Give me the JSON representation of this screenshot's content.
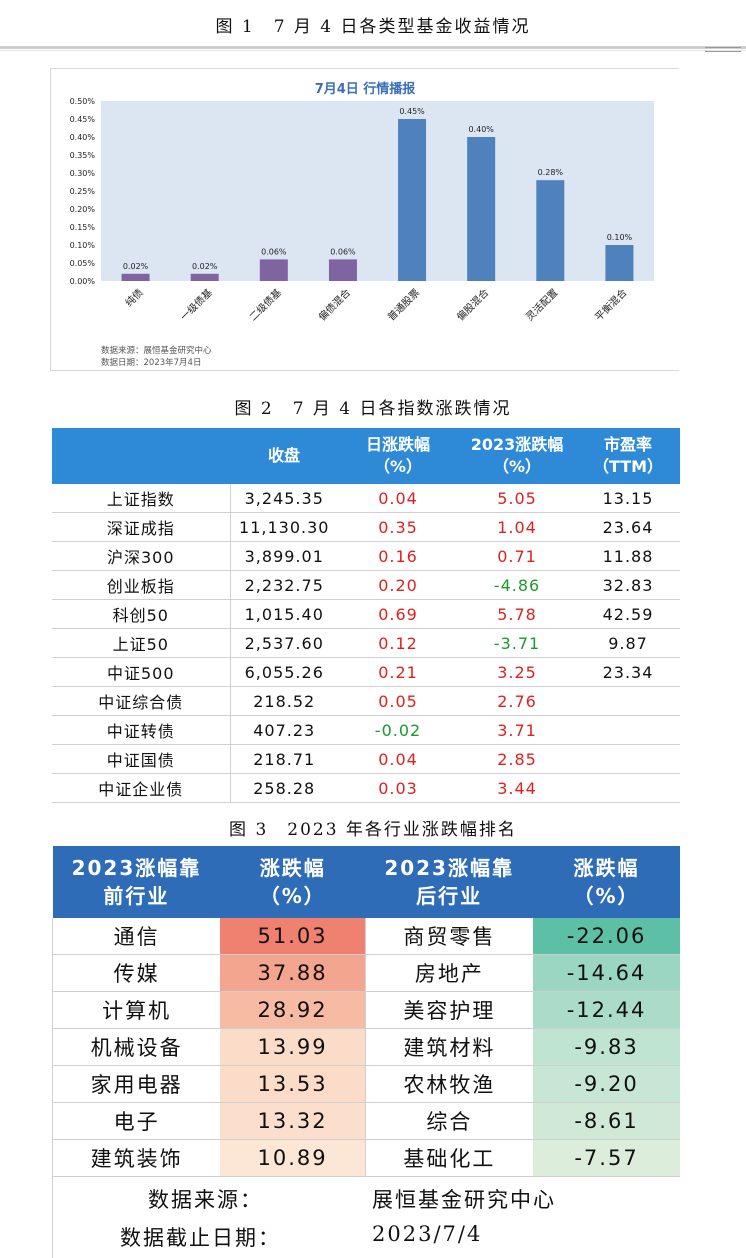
{
  "fig1": {
    "caption": "图 1　7 月 4 日各类型基金收益情况",
    "chart_data": {
      "type": "bar",
      "title": "7月4日  行情播报",
      "categories": [
        "纯债",
        "一级债基",
        "二级债基",
        "偏债混合",
        "普通股票",
        "偏股混合",
        "灵活配置",
        "平衡混合"
      ],
      "values": [
        0.02,
        0.02,
        0.06,
        0.06,
        0.45,
        0.4,
        0.28,
        0.1
      ],
      "data_labels": [
        "0.02%",
        "0.02%",
        "0.06%",
        "0.06%",
        "0.45%",
        "0.40%",
        "0.28%",
        "0.10%"
      ],
      "ylim": [
        0,
        0.5
      ],
      "yticks": [
        "0.00%",
        "0.05%",
        "0.10%",
        "0.15%",
        "0.20%",
        "0.25%",
        "0.30%",
        "0.35%",
        "0.40%",
        "0.45%",
        "0.50%"
      ],
      "colors": {
        "purple": "#8064a2",
        "blue": "#4f81bd",
        "plot_bg": "#dce6f2"
      },
      "bar_color_index": [
        "purple",
        "purple",
        "purple",
        "purple",
        "blue",
        "blue",
        "blue",
        "blue"
      ],
      "grid": false,
      "source_line1": "数据来源：展恒基金研究中心",
      "source_line2": "数据日期：2023年7月4日"
    }
  },
  "fig2": {
    "caption": "图 2　7 月 4 日各指数涨跌情况",
    "headers": [
      "",
      "收盘",
      "日涨跌幅\n（%）",
      "2023涨跌幅\n（%）",
      "市盈率\n（TTM）"
    ],
    "rows": [
      {
        "name": "上证指数",
        "close": "3,245.35",
        "day": "0.04",
        "ytd": "5.05",
        "pe": "13.15",
        "day_dir": "red",
        "ytd_dir": "red"
      },
      {
        "name": "深证成指",
        "close": "11,130.30",
        "day": "0.35",
        "ytd": "1.04",
        "pe": "23.64",
        "day_dir": "red",
        "ytd_dir": "red"
      },
      {
        "name": "沪深300",
        "close": "3,899.01",
        "day": "0.16",
        "ytd": "0.71",
        "pe": "11.88",
        "day_dir": "red",
        "ytd_dir": "red"
      },
      {
        "name": "创业板指",
        "close": "2,232.75",
        "day": "0.20",
        "ytd": "-4.86",
        "pe": "32.83",
        "day_dir": "red",
        "ytd_dir": "green"
      },
      {
        "name": "科创50",
        "close": "1,015.40",
        "day": "0.69",
        "ytd": "5.78",
        "pe": "42.59",
        "day_dir": "red",
        "ytd_dir": "red"
      },
      {
        "name": "上证50",
        "close": "2,537.60",
        "day": "0.12",
        "ytd": "-3.71",
        "pe": "9.87",
        "day_dir": "red",
        "ytd_dir": "green"
      },
      {
        "name": "中证500",
        "close": "6,055.26",
        "day": "0.21",
        "ytd": "3.25",
        "pe": "23.34",
        "day_dir": "red",
        "ytd_dir": "red"
      },
      {
        "name": "中证综合债",
        "close": "218.52",
        "day": "0.05",
        "ytd": "2.76",
        "pe": "",
        "day_dir": "red",
        "ytd_dir": "red"
      },
      {
        "name": "中证转债",
        "close": "407.23",
        "day": "-0.02",
        "ytd": "3.71",
        "pe": "",
        "day_dir": "green",
        "ytd_dir": "red"
      },
      {
        "name": "中证国债",
        "close": "218.71",
        "day": "0.04",
        "ytd": "2.85",
        "pe": "",
        "day_dir": "red",
        "ytd_dir": "red"
      },
      {
        "name": "中证企业债",
        "close": "258.28",
        "day": "0.03",
        "ytd": "3.44",
        "pe": "",
        "day_dir": "red",
        "ytd_dir": "red"
      }
    ]
  },
  "fig3": {
    "caption": "图 3　2023 年各行业涨跌幅排名",
    "headers": [
      "2023涨幅靠\n前行业",
      "涨跌幅\n（%）",
      "2023涨幅靠\n后行业",
      "涨跌幅\n（%）"
    ],
    "rows": [
      {
        "top": "通信",
        "top_val": "51.03",
        "top_bg": "#f08070",
        "bot": "商贸零售",
        "bot_val": "-22.06",
        "bot_bg": "#5cbfa6"
      },
      {
        "top": "传媒",
        "top_val": "37.88",
        "top_bg": "#f4a58f",
        "bot": "房地产",
        "bot_val": "-14.64",
        "bot_bg": "#9bd6c2"
      },
      {
        "top": "计算机",
        "top_val": "28.92",
        "top_bg": "#f7bba4",
        "bot": "美容护理",
        "bot_val": "-12.44",
        "bot_bg": "#aadcc9"
      },
      {
        "top": "机械设备",
        "top_val": "13.99",
        "top_bg": "#fbdcc8",
        "bot": "建筑材料",
        "bot_val": "-9.83",
        "bot_bg": "#c0e4d2"
      },
      {
        "top": "家用电器",
        "top_val": "13.53",
        "top_bg": "#fbdcc8",
        "bot": "农林牧渔",
        "bot_val": "-9.20",
        "bot_bg": "#c7e6d5"
      },
      {
        "top": "电子",
        "top_val": "13.32",
        "top_bg": "#fbdfcc",
        "bot": "综合",
        "bot_val": "-8.61",
        "bot_bg": "#d0e9d7"
      },
      {
        "top": "建筑装饰",
        "top_val": "10.89",
        "top_bg": "#fce6d6",
        "bot": "基础化工",
        "bot_val": "-7.57",
        "bot_bg": "#dceedb"
      }
    ],
    "source_label": "数据来源：",
    "source_value": "展恒基金研究中心",
    "date_label": "数据截止日期：",
    "date_value": "2023/7/4"
  }
}
